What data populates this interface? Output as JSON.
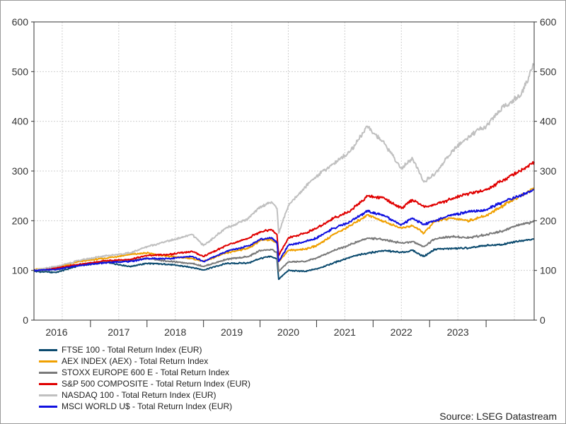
{
  "chart_data": {
    "type": "line",
    "title": "",
    "xlabel": "",
    "ylabel": "",
    "ylim": [
      0,
      600
    ],
    "yticks": [
      0,
      100,
      200,
      300,
      400,
      500,
      600
    ],
    "ytick_labels": [
      "0",
      "100",
      "200",
      "300",
      "400",
      "500",
      "600"
    ],
    "xlim": [
      2016.0,
      2024.85
    ],
    "xtick_labels": [
      "2016",
      "2017",
      "2018",
      "2019",
      "2020",
      "2021",
      "2022",
      "2023"
    ],
    "x_label_positions": [
      2016.4,
      2017.5,
      2018.5,
      2019.5,
      2020.5,
      2021.5,
      2022.5,
      2023.5
    ],
    "x_grid": [
      2016.5,
      2017.5,
      2018.5,
      2019.5,
      2020.5,
      2021.5,
      2022.5,
      2023.5,
      2024.5
    ],
    "x_major_ticks": [
      2017.0,
      2018.0,
      2019.0,
      2020.0,
      2021.0,
      2022.0,
      2023.0,
      2024.0
    ],
    "grid": true,
    "legend_position": "bottom-left",
    "series": [
      {
        "name": "FTSE 100 - Total Return Index (EUR)",
        "color": "#0b4a6e",
        "points": [
          [
            2016.0,
            98
          ],
          [
            2016.4,
            96
          ],
          [
            2016.8,
            110
          ],
          [
            2017.3,
            116
          ],
          [
            2017.7,
            108
          ],
          [
            2018.0,
            114
          ],
          [
            2018.4,
            112
          ],
          [
            2018.8,
            106
          ],
          [
            2019.0,
            101
          ],
          [
            2019.4,
            114
          ],
          [
            2019.8,
            115
          ],
          [
            2020.0,
            124
          ],
          [
            2020.2,
            128
          ],
          [
            2020.3,
            123
          ],
          [
            2020.33,
            82
          ],
          [
            2020.5,
            100
          ],
          [
            2020.8,
            98
          ],
          [
            2021.0,
            103
          ],
          [
            2021.3,
            115
          ],
          [
            2021.6,
            127
          ],
          [
            2021.9,
            135
          ],
          [
            2022.2,
            140
          ],
          [
            2022.5,
            136
          ],
          [
            2022.7,
            140
          ],
          [
            2022.9,
            128
          ],
          [
            2023.1,
            143
          ],
          [
            2023.4,
            144
          ],
          [
            2023.7,
            145
          ],
          [
            2024.0,
            150
          ],
          [
            2024.3,
            152
          ],
          [
            2024.6,
            160
          ],
          [
            2024.85,
            163
          ]
        ]
      },
      {
        "name": "AEX INDEX (AEX) - Total Return Index",
        "color": "#f0a000",
        "points": [
          [
            2016.0,
            102
          ],
          [
            2016.4,
            105
          ],
          [
            2016.8,
            118
          ],
          [
            2017.3,
            125
          ],
          [
            2017.7,
            132
          ],
          [
            2018.0,
            135
          ],
          [
            2018.4,
            128
          ],
          [
            2018.8,
            124
          ],
          [
            2019.0,
            118
          ],
          [
            2019.4,
            135
          ],
          [
            2019.8,
            145
          ],
          [
            2020.0,
            160
          ],
          [
            2020.2,
            162
          ],
          [
            2020.3,
            155
          ],
          [
            2020.33,
            118
          ],
          [
            2020.5,
            140
          ],
          [
            2020.8,
            143
          ],
          [
            2021.0,
            150
          ],
          [
            2021.3,
            172
          ],
          [
            2021.6,
            190
          ],
          [
            2021.9,
            212
          ],
          [
            2022.2,
            198
          ],
          [
            2022.5,
            185
          ],
          [
            2022.7,
            190
          ],
          [
            2022.9,
            175
          ],
          [
            2023.1,
            200
          ],
          [
            2023.4,
            205
          ],
          [
            2023.7,
            200
          ],
          [
            2024.0,
            210
          ],
          [
            2024.3,
            230
          ],
          [
            2024.6,
            250
          ],
          [
            2024.85,
            265
          ]
        ]
      },
      {
        "name": "STOXX EUROPE 600 E - Total Return Index",
        "color": "#7a7a7a",
        "points": [
          [
            2016.0,
            100
          ],
          [
            2016.4,
            102
          ],
          [
            2016.8,
            112
          ],
          [
            2017.3,
            118
          ],
          [
            2017.7,
            120
          ],
          [
            2018.0,
            124
          ],
          [
            2018.4,
            118
          ],
          [
            2018.8,
            114
          ],
          [
            2019.0,
            108
          ],
          [
            2019.4,
            122
          ],
          [
            2019.8,
            128
          ],
          [
            2020.0,
            140
          ],
          [
            2020.2,
            142
          ],
          [
            2020.3,
            136
          ],
          [
            2020.33,
            98
          ],
          [
            2020.5,
            117
          ],
          [
            2020.8,
            118
          ],
          [
            2021.0,
            125
          ],
          [
            2021.3,
            140
          ],
          [
            2021.6,
            152
          ],
          [
            2021.9,
            165
          ],
          [
            2022.2,
            162
          ],
          [
            2022.5,
            155
          ],
          [
            2022.7,
            158
          ],
          [
            2022.9,
            148
          ],
          [
            2023.1,
            164
          ],
          [
            2023.4,
            168
          ],
          [
            2023.7,
            166
          ],
          [
            2024.0,
            172
          ],
          [
            2024.3,
            180
          ],
          [
            2024.6,
            192
          ],
          [
            2024.85,
            198
          ]
        ]
      },
      {
        "name": "S&P 500 COMPOSITE - Total Return Index (EUR)",
        "color": "#e00000",
        "points": [
          [
            2016.0,
            100
          ],
          [
            2016.4,
            105
          ],
          [
            2016.8,
            112
          ],
          [
            2017.3,
            120
          ],
          [
            2017.7,
            122
          ],
          [
            2018.0,
            130
          ],
          [
            2018.4,
            132
          ],
          [
            2018.8,
            138
          ],
          [
            2019.0,
            128
          ],
          [
            2019.4,
            150
          ],
          [
            2019.8,
            165
          ],
          [
            2020.0,
            178
          ],
          [
            2020.2,
            182
          ],
          [
            2020.3,
            172
          ],
          [
            2020.33,
            130
          ],
          [
            2020.5,
            165
          ],
          [
            2020.8,
            175
          ],
          [
            2021.0,
            185
          ],
          [
            2021.3,
            205
          ],
          [
            2021.6,
            220
          ],
          [
            2021.9,
            250
          ],
          [
            2022.2,
            245
          ],
          [
            2022.5,
            225
          ],
          [
            2022.7,
            242
          ],
          [
            2022.9,
            228
          ],
          [
            2023.1,
            232
          ],
          [
            2023.4,
            245
          ],
          [
            2023.7,
            255
          ],
          [
            2024.0,
            262
          ],
          [
            2024.3,
            282
          ],
          [
            2024.6,
            300
          ],
          [
            2024.85,
            318
          ]
        ]
      },
      {
        "name": "NASDAQ 100 - Total Return Index (EUR)",
        "color": "#c0c0c0",
        "points": [
          [
            2016.0,
            100
          ],
          [
            2016.4,
            108
          ],
          [
            2016.8,
            120
          ],
          [
            2017.3,
            130
          ],
          [
            2017.7,
            135
          ],
          [
            2018.0,
            148
          ],
          [
            2018.4,
            160
          ],
          [
            2018.8,
            172
          ],
          [
            2019.0,
            150
          ],
          [
            2019.4,
            185
          ],
          [
            2019.8,
            205
          ],
          [
            2020.0,
            228
          ],
          [
            2020.2,
            238
          ],
          [
            2020.3,
            225
          ],
          [
            2020.33,
            175
          ],
          [
            2020.5,
            230
          ],
          [
            2020.8,
            268
          ],
          [
            2021.0,
            290
          ],
          [
            2021.3,
            315
          ],
          [
            2021.6,
            340
          ],
          [
            2021.9,
            390
          ],
          [
            2022.2,
            355
          ],
          [
            2022.5,
            305
          ],
          [
            2022.7,
            325
          ],
          [
            2022.9,
            278
          ],
          [
            2023.1,
            295
          ],
          [
            2023.4,
            340
          ],
          [
            2023.7,
            370
          ],
          [
            2024.0,
            390
          ],
          [
            2024.3,
            430
          ],
          [
            2024.6,
            450
          ],
          [
            2024.85,
            515
          ]
        ]
      },
      {
        "name": "MSCI WORLD U$ - Total Return Index (EUR)",
        "color": "#1010e0",
        "points": [
          [
            2016.0,
            100
          ],
          [
            2016.4,
            102
          ],
          [
            2016.8,
            110
          ],
          [
            2017.3,
            116
          ],
          [
            2017.7,
            118
          ],
          [
            2018.0,
            124
          ],
          [
            2018.4,
            124
          ],
          [
            2018.8,
            128
          ],
          [
            2019.0,
            118
          ],
          [
            2019.4,
            138
          ],
          [
            2019.8,
            150
          ],
          [
            2020.0,
            162
          ],
          [
            2020.2,
            166
          ],
          [
            2020.3,
            157
          ],
          [
            2020.33,
            118
          ],
          [
            2020.5,
            150
          ],
          [
            2020.8,
            158
          ],
          [
            2021.0,
            165
          ],
          [
            2021.3,
            185
          ],
          [
            2021.6,
            198
          ],
          [
            2021.9,
            220
          ],
          [
            2022.2,
            210
          ],
          [
            2022.5,
            192
          ],
          [
            2022.7,
            205
          ],
          [
            2022.9,
            192
          ],
          [
            2023.1,
            200
          ],
          [
            2023.4,
            212
          ],
          [
            2023.7,
            218
          ],
          [
            2024.0,
            222
          ],
          [
            2024.3,
            238
          ],
          [
            2024.6,
            250
          ],
          [
            2024.85,
            262
          ]
        ]
      }
    ]
  },
  "source_label": "Source: LSEG Datastream"
}
